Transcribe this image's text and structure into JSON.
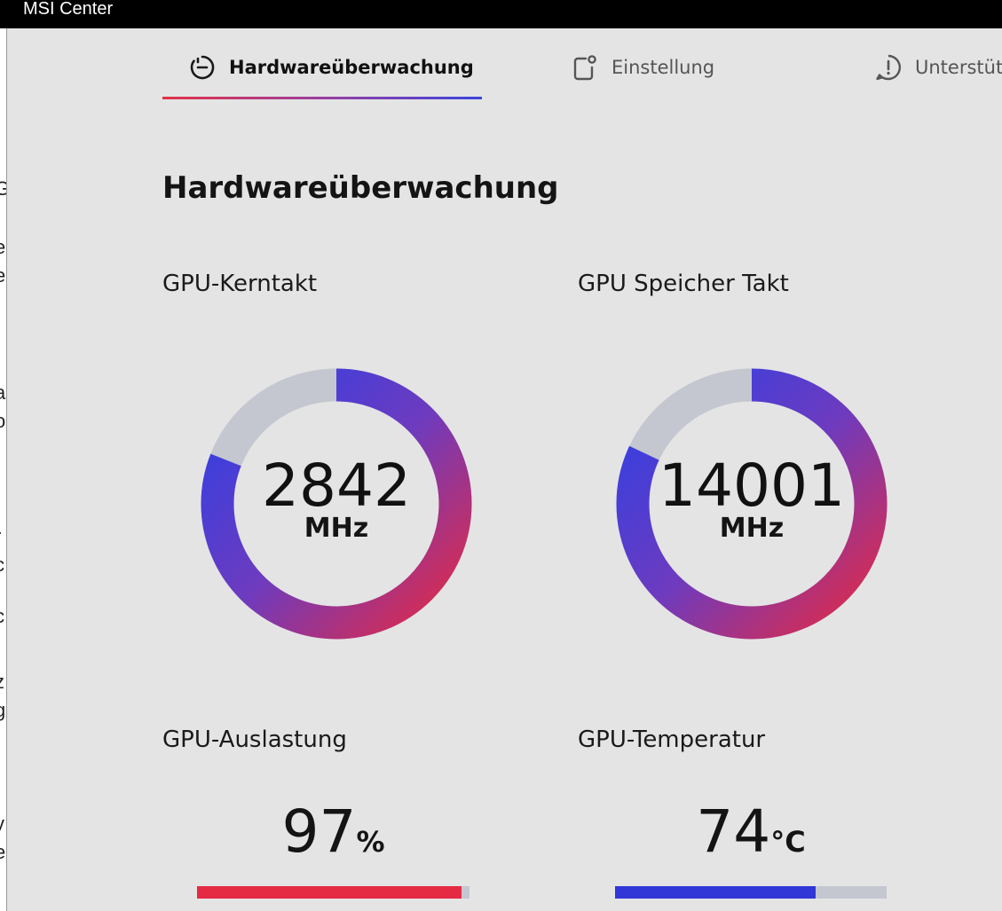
{
  "window": {
    "title": "MSI Center"
  },
  "left_strip_fragments": [
    "G",
    "e",
    "e",
    "a",
    "o",
    "r",
    "c",
    "c",
    "z",
    "g",
    "v",
    "e"
  ],
  "tabs": [
    {
      "label": "Hardwareüberwachung",
      "icon": "monitor-clock-icon",
      "active": true
    },
    {
      "label": "Einstellung",
      "icon": "settings-square-icon",
      "active": false
    },
    {
      "label": "Unterstütz",
      "icon": "support-chat-icon",
      "active": false
    }
  ],
  "page_heading": "Hardwareüberwachung",
  "gpu_core_clock": {
    "label": "GPU-Kerntakt",
    "value": "2842",
    "unit": "MHz",
    "fill_fraction": 0.81
  },
  "gpu_memory_clock": {
    "label": "GPU Speicher Takt",
    "value": "14001",
    "unit": "MHz",
    "fill_fraction": 0.82
  },
  "gpu_load": {
    "label": "GPU-Auslastung",
    "value": "97",
    "unit": "%",
    "fill_percent": 97,
    "bar_color": "#e52a44"
  },
  "gpu_temperature": {
    "label": "GPU-Temperatur",
    "value": "74",
    "unit": "°C",
    "fill_percent": 74,
    "bar_color": "#3137d6"
  },
  "colors": {
    "background": "#e4e4e5",
    "gauge_track": "#c4c7cf",
    "gradient_red": "#e02a46",
    "gradient_purple": "#8a38b0",
    "gradient_blue": "#303fe2"
  }
}
